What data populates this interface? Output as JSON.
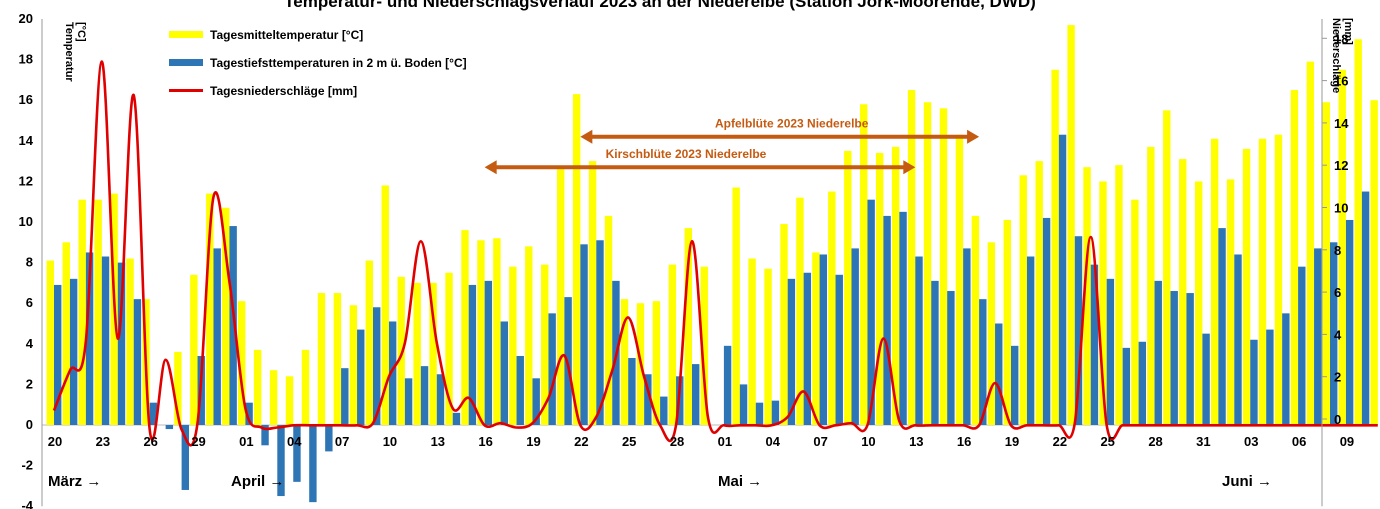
{
  "chart_data": {
    "type": "bar",
    "title": "Temperatur- und Niederschlagsverlauf 2023 an der Niederelbe (Station Jork-Moorende, DWD)",
    "y_left_title": [
      "Temperatur",
      "[°C]"
    ],
    "y_right_title": [
      "Niederschläge",
      "[mm]"
    ],
    "ylim_left": [
      -4,
      20
    ],
    "ylim_right": [
      -2.56,
      18.5
    ],
    "y_left_ticks": [
      -4,
      -2,
      0,
      2,
      4,
      6,
      8,
      10,
      12,
      14,
      16,
      18,
      20
    ],
    "y_right_ticks": [
      0,
      2,
      4,
      6,
      8,
      10,
      12,
      14,
      16,
      18
    ],
    "x_tick_labels": [
      "20",
      "23",
      "26",
      "29",
      "01",
      "04",
      "07",
      "10",
      "13",
      "16",
      "19",
      "22",
      "25",
      "28",
      "01",
      "04",
      "07",
      "10",
      "13",
      "16",
      "19",
      "22",
      "25",
      "28",
      "31",
      "03",
      "06",
      "09"
    ],
    "month_labels": [
      "März →",
      "April →",
      "Mai →",
      "Juni →"
    ],
    "legend_position": "top-left",
    "colors": {
      "mean": "#FFFF00",
      "min": "#2E75B6",
      "precip": "#E00000",
      "arrow": "#C55A11"
    },
    "series": [
      {
        "name": "Tagesmitteltemperatur [°C]",
        "type": "bar",
        "values": [
          8.1,
          9.0,
          11.1,
          11.1,
          11.4,
          8.2,
          6.2,
          0.0,
          3.6,
          7.4,
          11.4,
          10.7,
          6.1,
          3.7,
          2.7,
          2.4,
          3.7,
          6.5,
          6.5,
          5.9,
          8.1,
          11.8,
          7.3,
          7.0,
          7.0,
          7.5,
          9.6,
          9.1,
          9.2,
          7.8,
          8.8,
          7.9,
          12.6,
          16.3,
          13.0,
          10.3,
          6.2,
          6.0,
          6.1,
          7.9,
          9.7,
          7.8,
          0.0,
          11.7,
          8.2,
          7.7,
          9.9,
          11.2,
          8.5,
          11.5,
          13.5,
          15.8,
          13.4,
          13.7,
          16.5,
          15.9,
          15.6,
          14.3,
          10.3,
          9.0,
          10.1,
          12.3,
          13.0,
          17.5,
          19.7,
          12.7,
          12.0,
          12.8,
          11.1,
          13.7,
          15.5,
          13.1,
          12.0,
          14.1,
          12.1,
          13.6,
          14.1,
          14.3,
          16.5,
          17.9,
          15.9,
          17.5,
          19.0,
          16.0
        ]
      },
      {
        "name": "Tagestiefsttemperaturen  in 2 m ü. Boden [°C]",
        "type": "bar",
        "values": [
          6.9,
          7.2,
          8.5,
          8.3,
          8.0,
          6.2,
          1.1,
          -0.2,
          -3.2,
          3.4,
          8.7,
          9.8,
          1.1,
          -1.0,
          -3.5,
          -2.8,
          -3.8,
          -1.3,
          2.8,
          4.7,
          5.8,
          5.1,
          2.3,
          2.9,
          2.5,
          0.6,
          6.9,
          7.1,
          5.1,
          3.4,
          2.3,
          5.5,
          6.3,
          8.9,
          9.1,
          7.1,
          3.3,
          2.5,
          1.4,
          2.4,
          3.0,
          0.0,
          3.9,
          2.0,
          1.1,
          1.2,
          7.2,
          7.5,
          8.4,
          7.4,
          8.7,
          11.1,
          10.3,
          10.5,
          8.3,
          7.1,
          6.6,
          8.7,
          6.2,
          5.0,
          3.9,
          8.3,
          10.2,
          14.3,
          9.3,
          7.9,
          7.2,
          3.8,
          4.1,
          7.1,
          6.6,
          6.5,
          4.5,
          9.7,
          8.4,
          4.2,
          4.7,
          5.5,
          7.8,
          8.7,
          9.0,
          10.1,
          11.5,
          0.0
        ]
      },
      {
        "name": "Tagesniederschläge [mm]",
        "type": "line",
        "values": [
          0.4,
          2.3,
          3.7,
          16.9,
          3.8,
          15.3,
          -0.5,
          2.8,
          -0.5,
          -0.2,
          10.5,
          6.5,
          0.5,
          -0.4,
          -0.4,
          -0.3,
          -0.3,
          -0.3,
          -0.3,
          -0.3,
          -0.2,
          2.0,
          3.6,
          8.4,
          3.6,
          0.5,
          1.0,
          -0.3,
          -0.2,
          -0.4,
          -0.2,
          1.0,
          3.0,
          -0.3,
          0.1,
          2.3,
          4.8,
          2.0,
          -0.3,
          -0.3,
          8.4,
          0.1,
          -0.3,
          -0.3,
          -0.3,
          -0.3,
          0.1,
          1.3,
          -0.3,
          -0.3,
          -0.2,
          -0.3,
          3.8,
          -0.1,
          -0.3,
          -0.3,
          -0.3,
          -0.3,
          -0.3,
          1.7,
          -0.3,
          -0.3,
          -0.3,
          -0.3,
          -0.2,
          8.6,
          -0.3,
          -0.3,
          -0.3,
          -0.3,
          -0.3,
          -0.3,
          -0.3,
          -0.3,
          -0.3,
          -0.3,
          -0.3,
          -0.3,
          -0.3,
          -0.3,
          -0.3,
          -0.3,
          -0.3,
          -0.3
        ]
      }
    ],
    "annotations": [
      {
        "text": "Apfelblüte 2023 Niederelbe",
        "from_index": 33,
        "to_index": 58,
        "y": 14.2
      },
      {
        "text": "Kirschblüte 2023 Niederelbe",
        "from_index": 27,
        "to_index": 54,
        "y": 12.7
      }
    ]
  }
}
